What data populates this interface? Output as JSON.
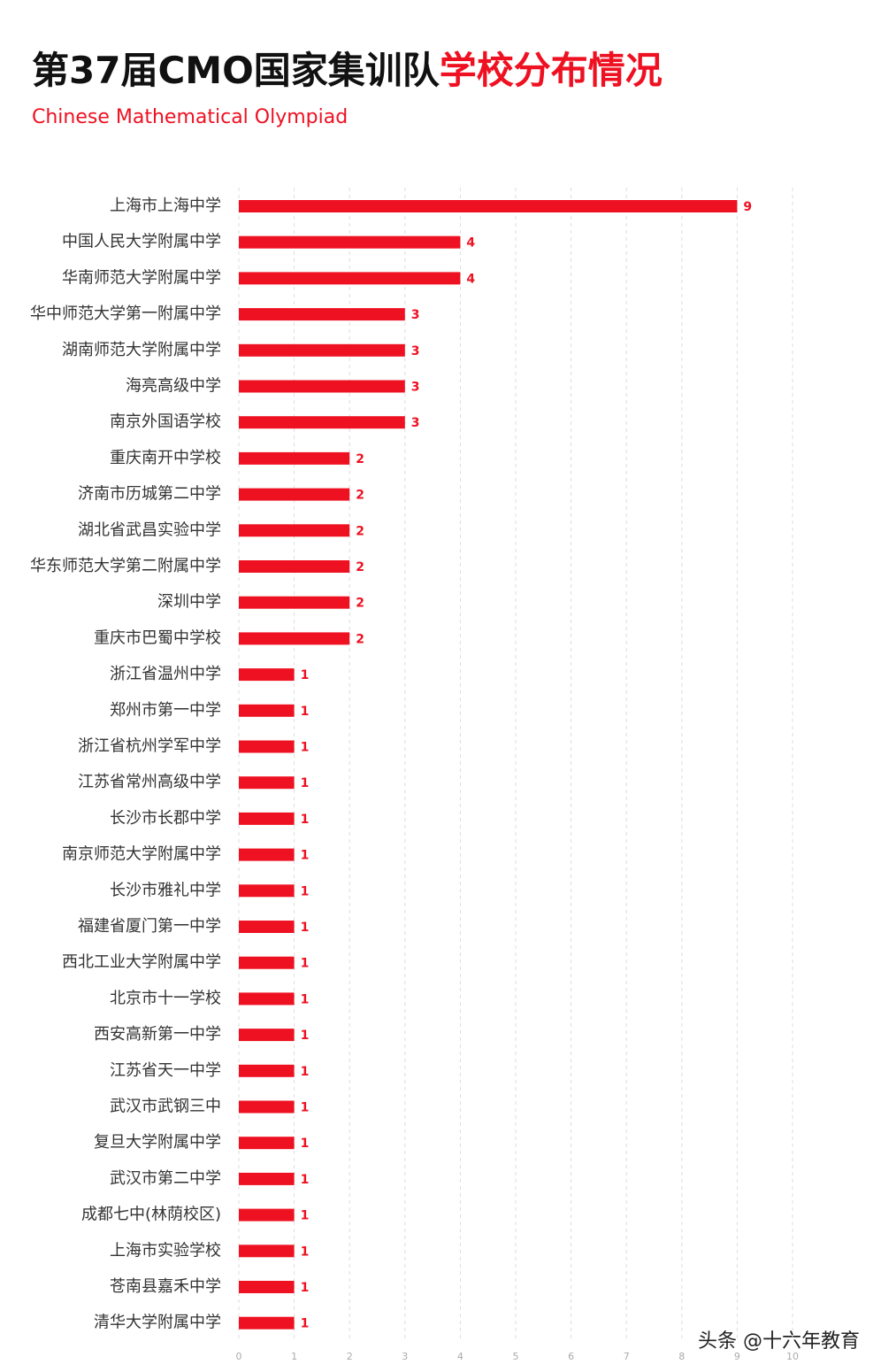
{
  "chart_data": {
    "type": "barh",
    "title": [
      "第37届CMO国家集训队",
      "学校分布情况"
    ],
    "subtitle": "Chinese Mathematical Olympiad",
    "categories": [
      "上海市上海中学",
      "中国人民大学附属中学",
      "华南师范大学附属中学",
      "华中师范大学第一附属中学",
      "湖南师范大学附属中学",
      "海亮高级中学",
      "南京外国语学校",
      "重庆南开中学校",
      "济南市历城第二中学",
      "湖北省武昌实验中学",
      "华东师范大学第二附属中学",
      "深圳中学",
      "重庆市巴蜀中学校",
      "浙江省温州中学",
      "郑州市第一中学",
      "浙江省杭州学军中学",
      "江苏省常州高级中学",
      "长沙市长郡中学",
      "南京师范大学附属中学",
      "长沙市雅礼中学",
      "福建省厦门第一中学",
      "西北工业大学附属中学",
      "北京市十一学校",
      "西安高新第一中学",
      "江苏省天一中学",
      "武汉市武钢三中",
      "复旦大学附属中学",
      "武汉市第二中学",
      "成都七中(林荫校区)",
      "上海市实验学校",
      "苍南县嘉禾中学",
      "清华大学附属中学"
    ],
    "values": [
      9,
      4,
      4,
      3,
      3,
      3,
      3,
      2,
      2,
      2,
      2,
      2,
      2,
      1,
      1,
      1,
      1,
      1,
      1,
      1,
      1,
      1,
      1,
      1,
      1,
      1,
      1,
      1,
      1,
      1,
      1,
      1
    ],
    "color": "#ee1122",
    "title_colors": [
      "#111111",
      "#ee1122"
    ],
    "xlim": [
      0,
      10
    ],
    "xticks": [
      0,
      1,
      2,
      3,
      4,
      5,
      6,
      7,
      8,
      9,
      10
    ],
    "grid": true
  },
  "watermark": "头条 @十六年教育"
}
